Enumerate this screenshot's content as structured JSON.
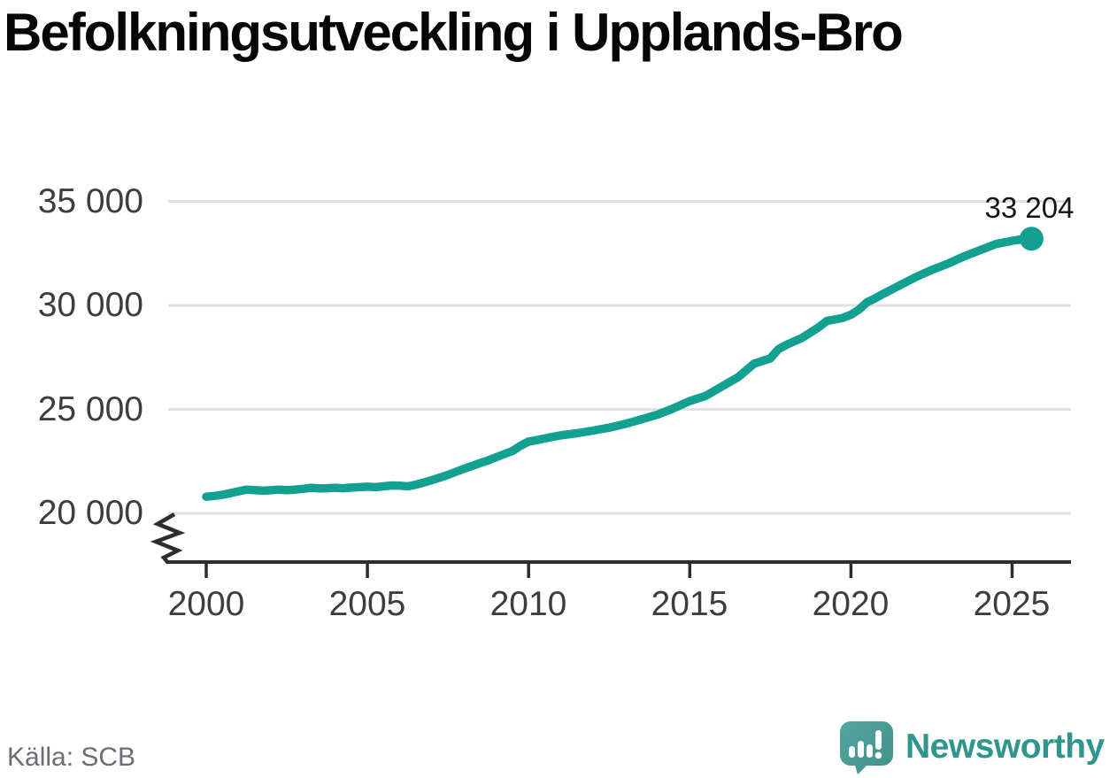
{
  "title": "Befolkningsutveckling i Upplands-Bro",
  "source": "Källa: SCB",
  "branding": {
    "logo_text": "Newsworthy",
    "logo_icon": "newsworthy-speech-bubble-bar-chart-icon"
  },
  "colors": {
    "line": "#12a091",
    "end_dot": "#12a091",
    "grid": "#e2e2e2",
    "axis": "#2d2d2d",
    "tick_text": "#3d3d3d",
    "annotation_text": "#141414",
    "source_text": "#6c6c76",
    "brand_teal": "#2f968f",
    "logo_bubble": "#4a9c96"
  },
  "chart_data": {
    "type": "line",
    "title": "Befolkningsutveckling i Upplands-Bro",
    "xlabel": "",
    "ylabel": "",
    "grid": "horizontal",
    "y_axis_break": true,
    "x_range": [
      1998.8,
      2026.8
    ],
    "y_range": [
      20000,
      35000
    ],
    "x_ticks": [
      2000,
      2005,
      2010,
      2015,
      2020,
      2025
    ],
    "x_tick_labels": [
      "2000",
      "2005",
      "2010",
      "2015",
      "2020",
      "2025"
    ],
    "y_ticks": [
      20000,
      25000,
      30000,
      35000
    ],
    "y_tick_labels": [
      "20 000",
      "25 000",
      "30 000",
      "35 000"
    ],
    "end_label": {
      "text": "33 204",
      "value": 33204,
      "x": 2025.6
    },
    "series": [
      {
        "points": [
          [
            2000.0,
            20800
          ],
          [
            2000.25,
            20840
          ],
          [
            2000.5,
            20890
          ],
          [
            2000.75,
            20970
          ],
          [
            2001.0,
            21060
          ],
          [
            2001.25,
            21140
          ],
          [
            2001.5,
            21120
          ],
          [
            2001.75,
            21090
          ],
          [
            2002.0,
            21110
          ],
          [
            2002.25,
            21140
          ],
          [
            2002.5,
            21120
          ],
          [
            2002.75,
            21140
          ],
          [
            2003.0,
            21180
          ],
          [
            2003.25,
            21230
          ],
          [
            2003.5,
            21200
          ],
          [
            2003.75,
            21210
          ],
          [
            2004.0,
            21230
          ],
          [
            2004.25,
            21210
          ],
          [
            2004.5,
            21240
          ],
          [
            2004.75,
            21260
          ],
          [
            2005.0,
            21280
          ],
          [
            2005.25,
            21260
          ],
          [
            2005.5,
            21300
          ],
          [
            2005.75,
            21340
          ],
          [
            2006.0,
            21330
          ],
          [
            2006.25,
            21300
          ],
          [
            2006.5,
            21380
          ],
          [
            2006.75,
            21480
          ],
          [
            2007.0,
            21600
          ],
          [
            2007.25,
            21720
          ],
          [
            2007.5,
            21850
          ],
          [
            2007.75,
            22000
          ],
          [
            2008.0,
            22150
          ],
          [
            2008.25,
            22280
          ],
          [
            2008.5,
            22420
          ],
          [
            2008.75,
            22550
          ],
          [
            2009.0,
            22700
          ],
          [
            2009.25,
            22850
          ],
          [
            2009.5,
            23000
          ],
          [
            2009.75,
            23250
          ],
          [
            2010.0,
            23450
          ],
          [
            2010.25,
            23520
          ],
          [
            2010.5,
            23600
          ],
          [
            2010.75,
            23680
          ],
          [
            2011.0,
            23750
          ],
          [
            2011.5,
            23850
          ],
          [
            2012.0,
            23980
          ],
          [
            2012.5,
            24120
          ],
          [
            2013.0,
            24300
          ],
          [
            2013.5,
            24520
          ],
          [
            2014.0,
            24750
          ],
          [
            2014.5,
            25050
          ],
          [
            2015.0,
            25400
          ],
          [
            2015.5,
            25650
          ],
          [
            2016.0,
            26100
          ],
          [
            2016.5,
            26550
          ],
          [
            2017.0,
            27200
          ],
          [
            2017.5,
            27450
          ],
          [
            2017.75,
            27900
          ],
          [
            2018.0,
            28100
          ],
          [
            2018.5,
            28450
          ],
          [
            2019.0,
            28950
          ],
          [
            2019.25,
            29250
          ],
          [
            2019.5,
            29320
          ],
          [
            2019.75,
            29400
          ],
          [
            2020.0,
            29550
          ],
          [
            2020.25,
            29800
          ],
          [
            2020.5,
            30150
          ],
          [
            2020.75,
            30340
          ],
          [
            2021.0,
            30550
          ],
          [
            2021.5,
            30950
          ],
          [
            2022.0,
            31350
          ],
          [
            2022.5,
            31700
          ],
          [
            2023.0,
            32000
          ],
          [
            2023.5,
            32350
          ],
          [
            2024.0,
            32650
          ],
          [
            2024.5,
            32950
          ],
          [
            2025.0,
            33100
          ],
          [
            2025.3,
            33170
          ],
          [
            2025.6,
            33204
          ]
        ]
      }
    ]
  }
}
